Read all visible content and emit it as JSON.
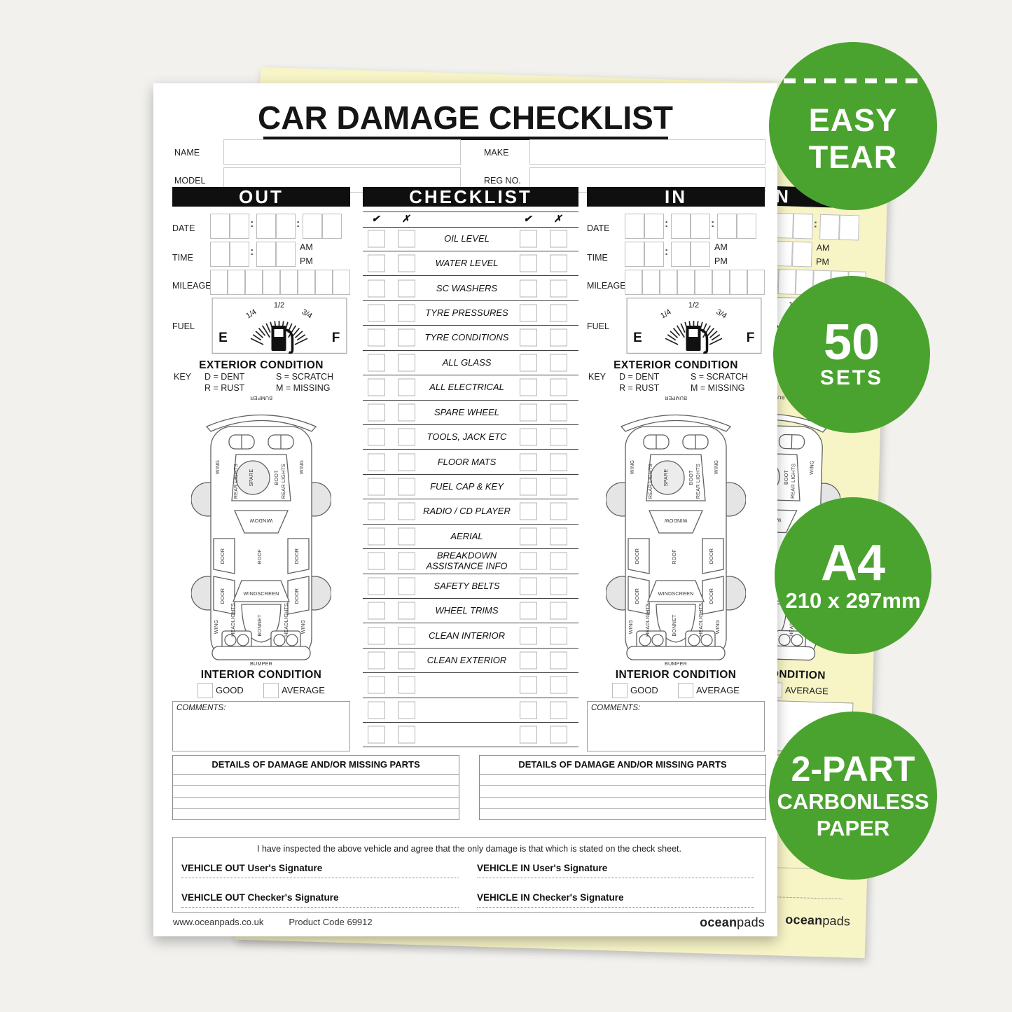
{
  "colors": {
    "background": "#f2f1ee",
    "paper_white": "#ffffff",
    "paper_yellow": "#f7f4c6",
    "badge_green": "#4aa32e",
    "bar_black": "#0f0f0f"
  },
  "form": {
    "title": "CAR DAMAGE CHECKLIST",
    "labels": {
      "name": "NAME",
      "make": "MAKE",
      "model": "MODEL",
      "reg_no": "REG NO.",
      "out": "OUT",
      "checklist": "CHECKLIST",
      "in": "IN",
      "date": "DATE",
      "time": "TIME",
      "mileage": "MILEAGE",
      "fuel": "FUEL",
      "am": "AM",
      "pm": "PM",
      "colon": ":",
      "exterior_condition": "EXTERIOR CONDITION",
      "key": "KEY",
      "interior_condition": "INTERIOR CONDITION",
      "good": "GOOD",
      "average": "AVERAGE",
      "comments": "COMMENTS:",
      "details_title": "DETAILS OF DAMAGE AND/OR MISSING PARTS",
      "agreement": "I have inspected the above vehicle and agree that the only damage is that which is stated on the check sheet.",
      "sig_out_user": "VEHICLE OUT User's Signature",
      "sig_in_user": "VEHICLE IN User's Signature",
      "sig_out_checker": "VEHICLE OUT Checker's Signature",
      "sig_in_checker": "VEHICLE IN Checker's Signature"
    },
    "key_rows": [
      "D  =  DENT",
      "S  =  SCRATCH",
      "R  =  RUST",
      "M  =  MISSING"
    ],
    "fuel_gauge": {
      "empty": "E",
      "full": "F",
      "quarter": "1/4",
      "half": "1/2",
      "three_quarter": "3/4"
    },
    "checklist": {
      "tick": "✔",
      "cross": "✗",
      "empty_rows": 3,
      "items": [
        "OIL LEVEL",
        "WATER LEVEL",
        "SC WASHERS",
        "TYRE PRESSURES",
        "TYRE CONDITIONS",
        "ALL GLASS",
        "ALL ELECTRICAL",
        "SPARE WHEEL",
        "TOOLS, JACK ETC",
        "FLOOR MATS",
        "FUEL CAP & KEY",
        "RADIO / CD PLAYER",
        "AERIAL",
        "BREAKDOWN ASSISTANCE INFO",
        "SAFETY BELTS",
        "WHEEL TRIMS",
        "CLEAN INTERIOR",
        "CLEAN EXTERIOR"
      ]
    },
    "car_labels": {
      "bumper": "BUMPER",
      "wing": "WING",
      "rear_lights": "REAR LIGHTS",
      "spare": "SPARE",
      "boot": "BOOT",
      "window": "WINDOW",
      "door": "DOOR",
      "roof": "ROOF",
      "windscreen": "WINDSCREEN",
      "bonnet": "BONNET",
      "headlights": "HEADLIGHTS"
    },
    "footer": {
      "website": "www.oceanpads.co.uk",
      "product_code": "Product Code 69912",
      "brand_bold": "ocean",
      "brand_light": "pads"
    }
  },
  "badges": {
    "easy_tear": {
      "line1": "EASY",
      "line2": "TEAR"
    },
    "sets": {
      "line1": "50",
      "line2": "SETS"
    },
    "size": {
      "line1": "A4",
      "line2": "210 x 297mm"
    },
    "parts": {
      "line1": "2-PART",
      "line2": "CARBONLESS",
      "line3": "PAPER"
    }
  }
}
